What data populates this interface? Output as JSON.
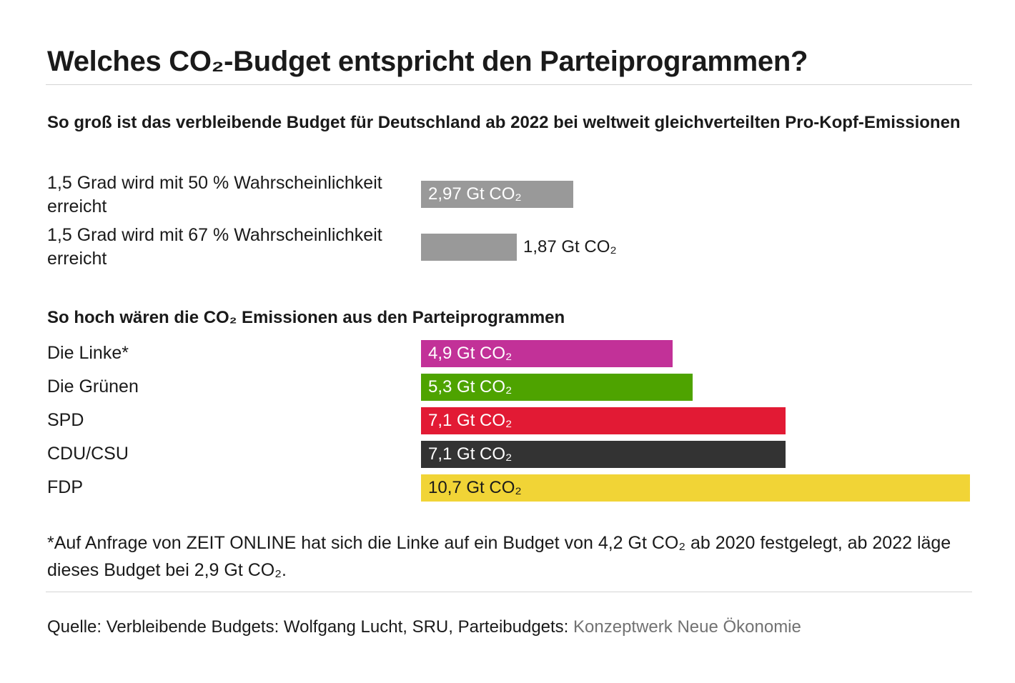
{
  "title": "Welches CO₂-Budget entspricht den Parteiprogrammen?",
  "chart_data": [
    {
      "type": "bar",
      "orientation": "horizontal",
      "title": "So groß ist das verbleibende Budget für Deutschland ab 2022 bei weltweit gleichverteilten Pro-Kopf-Emissionen",
      "unit": "Gt CO₂",
      "xlim": [
        0,
        10.7
      ],
      "categories": [
        "1,5 Grad wird mit 50 % Wahrscheinlichkeit erreicht",
        "1,5 Grad wird mit 67 % Wahrscheinlichkeit erreicht"
      ],
      "values": [
        2.97,
        1.87
      ],
      "value_labels": [
        "2,97 Gt CO₂",
        "1,87 Gt CO₂"
      ],
      "colors": [
        "#999999",
        "#999999"
      ]
    },
    {
      "type": "bar",
      "orientation": "horizontal",
      "title": "So hoch wären die CO₂ Emissionen aus den Parteiprogrammen",
      "unit": "Gt CO₂",
      "xlim": [
        0,
        10.7
      ],
      "categories": [
        "Die Linke*",
        "Die Grünen",
        "SPD",
        "CDU/CSU",
        "FDP"
      ],
      "values": [
        4.9,
        5.3,
        7.1,
        7.1,
        10.7
      ],
      "value_labels": [
        "4,9 Gt CO₂",
        "5,3 Gt CO₂",
        "7,1 Gt CO₂",
        "7,1 Gt CO₂",
        "10,7 Gt CO₂"
      ],
      "colors": [
        "#c23198",
        "#4ea300",
        "#e21a34",
        "#333333",
        "#f1d436"
      ],
      "label_colors": [
        "#ffffff",
        "#ffffff",
        "#ffffff",
        "#ffffff",
        "#1a1a1a"
      ]
    }
  ],
  "footnote": "*Auf Anfrage von ZEIT ONLINE hat sich die Linke auf ein Budget von 4,2 Gt CO₂ ab 2020 festgelegt, ab 2022 läge dieses Budget bei 2,9 Gt CO₂.",
  "source": {
    "prefix": "Quelle: Verbleibende Budgets: Wolfgang Lucht, SRU, Parteibudgets: ",
    "link_text": "Konzeptwerk Neue Ökonomie"
  }
}
